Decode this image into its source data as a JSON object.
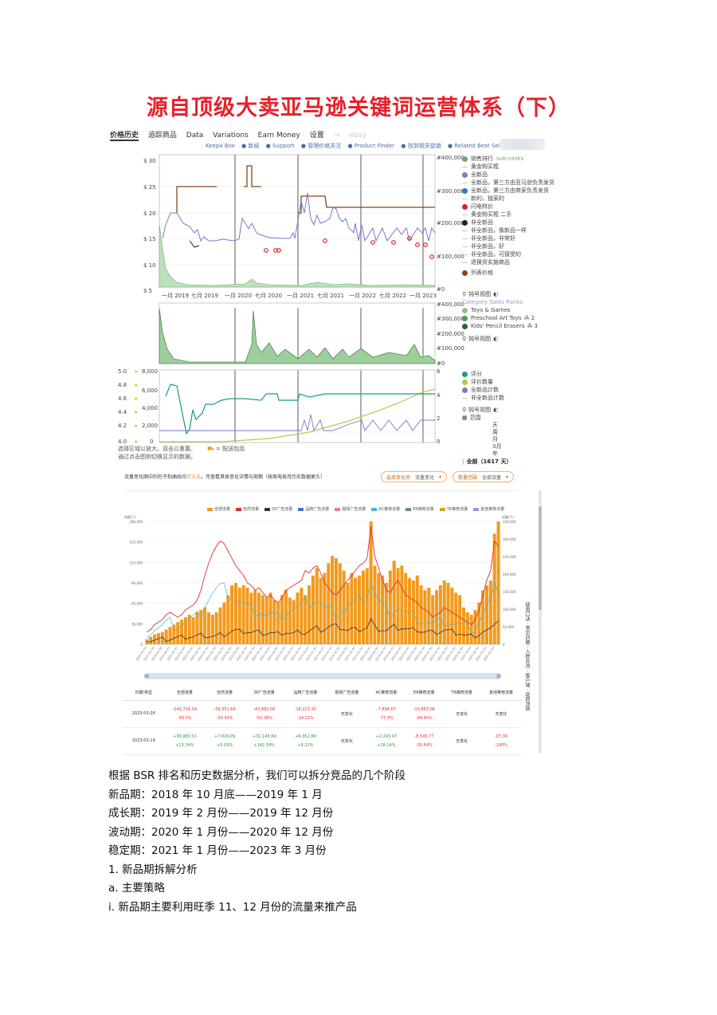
{
  "title": "源自顶级大卖亚马逊关键词运营体系（下）",
  "keepa": {
    "tabs": [
      "价格历史",
      "追踪商品",
      "Data",
      "Variations",
      "Earn Money",
      "设置",
      "→",
      "ebay"
    ],
    "links": [
      "Keepa Box",
      "● 新闻",
      "● Support",
      "● 管理价格关注",
      "● Product Finder",
      "● 找到相关促销",
      "● Related Best Sellers"
    ],
    "price_axis": [
      "$ 30",
      "$ 25",
      "$ 20",
      "$ 15",
      "$ 10",
      "$ 5"
    ],
    "rank_axis": [
      "#400,000",
      "#300,000",
      "#200,000",
      "#100,000",
      "#0"
    ],
    "rank_axis_small": [
      "#400,000",
      "#300,000",
      "#200,000",
      "#100,000",
      "#0"
    ],
    "date_axis": [
      "一月 2019",
      "七月 2019",
      "一月 2020",
      "七月 2020",
      "一月 2021",
      "七月 2021",
      "一月 2022",
      "七月 2022",
      "一月 2023"
    ],
    "rating_axis": [
      "5.0",
      "4.8",
      "4.6",
      "4.4",
      "4.2",
      "4.0"
    ],
    "count_axis": [
      "8,000",
      "6,000",
      "4,000",
      "2,000",
      "0"
    ],
    "offer_axis": [
      "6",
      "4",
      "2",
      "0"
    ],
    "legend_main": [
      {
        "text": "销售排行",
        "extra": "sub-ranks",
        "color": "#6aa86a",
        "kind": "dot"
      },
      {
        "text": "黄金购买框",
        "color": "#888",
        "kind": "dash"
      },
      {
        "text": "全新品",
        "color": "#7b77cc",
        "kind": "dot"
      },
      {
        "text": "全新品，第三方由亚马逊负责发货",
        "color": "#888",
        "kind": "dash"
      },
      {
        "text": "全新品，第三方由商家负责发货",
        "color": "#3a6fd8",
        "kind": "dot"
      },
      {
        "text": "新的，独家的",
        "color": "#888",
        "kind": "dash"
      },
      {
        "text": "闪电特价",
        "color": "#e02020",
        "kind": "dot"
      },
      {
        "text": "黄金购买框 二手",
        "color": "#888",
        "kind": "dash"
      },
      {
        "text": "非全新品",
        "color": "#222",
        "kind": "dot"
      },
      {
        "text": "非全新品，像新品一样",
        "color": "#888",
        "kind": "dash"
      },
      {
        "text": "非全新品，非常好",
        "color": "#888",
        "kind": "dash"
      },
      {
        "text": "非全新品，好",
        "color": "#888",
        "kind": "dash"
      },
      {
        "text": "非全新品，可接受的",
        "color": "#888",
        "kind": "dash"
      },
      {
        "text": "退换货实施商品",
        "color": "#888",
        "kind": "dash"
      },
      {
        "text": "列表价格",
        "color": "#8b4513",
        "kind": "dot"
      }
    ],
    "legend_rank": {
      "toggle": "钝号视图",
      "title": "Category Sales Ranks",
      "items": [
        {
          "text": "Toys & Games",
          "color": "#8fbf8f"
        },
        {
          "text": "Preschool Art Toys",
          "suffix": "2",
          "color": "#4f9a5a"
        },
        {
          "text": "Kids' Pencil Erasers",
          "suffix": "3",
          "color": "#2f5f35"
        }
      ],
      "toggle2": "钝号视图"
    },
    "legend_rating": [
      {
        "text": "评分",
        "color": "#1a9a8a"
      },
      {
        "text": "评价数量",
        "color": "#b7c94a"
      },
      {
        "text": "全新品计数",
        "color": "#7b77cc"
      },
      {
        "text": "非全新品计数",
        "color": "#888",
        "kind": "dash"
      }
    ],
    "rating_toggle": "钝号视图",
    "range_label": "范围",
    "range_options": [
      "天",
      "周",
      "月",
      "3月",
      "年"
    ],
    "range_all": "全部（1617 天）",
    "note_line1": "选择区域以放大。双击以重置。",
    "note_legend": "= 配送包括",
    "note_line2": "通过点击图例切换显示的数据。"
  },
  "traffic": {
    "header_prefix": "流量变化图中的柱子和曲线均",
    "header_accent": "可点击",
    "header_suffix": "。可查看具体变化详情与周期（按周电按月历史数据更久）",
    "select1": {
      "label": "选择变化项",
      "value": "流量变化"
    },
    "select2": {
      "label": "数量范围",
      "value": "全部流量"
    },
    "legend": [
      {
        "text": "全部流量",
        "color": "#f39a1c"
      },
      {
        "text": "自然流量",
        "color": "#e0302a"
      },
      {
        "text": "SP广告流量",
        "color": "#333333"
      },
      {
        "text": "品牌广告流量",
        "color": "#3a7bd5"
      },
      {
        "text": "视频广告流量",
        "color": "#e37aa8"
      },
      {
        "text": "AC推荐流量",
        "color": "#4bb6c7"
      },
      {
        "text": "ER推荐流量",
        "color": "#6d8f6d"
      },
      {
        "text": "TR推荐流量",
        "color": "#d9a227"
      },
      {
        "text": "其他推荐流量",
        "color": "#b38bd8"
      }
    ],
    "left_axis_title": "流量(个)",
    "right_axis_title": "流量(个)",
    "left_ticks": [
      "180,000",
      "150,000",
      "120,000",
      "90,000",
      "60,000",
      "30,000",
      "0"
    ],
    "right_ticks": [
      "350,000",
      "300,000",
      "250,000",
      "200,000",
      "150,000",
      "100,000",
      "50,000",
      "0"
    ],
    "sidebar_text": "使用口诀 · 常见问题 · 入群交流 · 客户端 · 返回顶部",
    "table": {
      "headers": [
        "日期\\类型",
        "全部流量",
        "自然流量",
        "SP广告流量",
        "品牌广告流量",
        "视频广告流量",
        "AC推荐流量",
        "ER推荐流量",
        "TR推荐流量",
        "其他推荐流量"
      ],
      "rows": [
        {
          "date": "2023-03-26",
          "cells": [
            {
              "v": "-140,716.04",
              "p": "-43.5%",
              "sign": "neg"
            },
            {
              "v": "-56,351.64",
              "p": "-33.43%",
              "sign": "neg"
            },
            {
              "v": "-43,882.06",
              "p": "-52.38%",
              "sign": "neg"
            },
            {
              "v": "-16,223.20",
              "p": "-24.21%",
              "sign": "neg"
            },
            {
              "v": "无变化",
              "p": "",
              "sign": "none"
            },
            {
              "v": "-7,894.67",
              "p": "-77.3%",
              "sign": "neg"
            },
            {
              "v": "-15,863.06",
              "p": "-89.45%",
              "sign": "neg"
            },
            {
              "v": "无变化",
              "p": "",
              "sign": "none"
            },
            {
              "v": "无变化",
              "p": "",
              "sign": "none"
            }
          ]
        },
        {
          "date": "2023-03-19",
          "cells": [
            {
              "v": "+38,965.51",
              "p": "+13.74%",
              "sign": "pos"
            },
            {
              "v": "+7,824.09",
              "p": "+5.03%",
              "sign": "pos"
            },
            {
              "v": "+31,148.84",
              "p": "+142.39%",
              "sign": "pos"
            },
            {
              "v": "+6,352.84",
              "p": "+9.22%",
              "sign": "pos"
            },
            {
              "v": "无变化",
              "p": "",
              "sign": "none"
            },
            {
              "v": "+2,243.07",
              "p": "+28.14%",
              "sign": "pos"
            },
            {
              "v": "-8,545.77",
              "p": "-30.64%",
              "sign": "neg"
            },
            {
              "v": "无变化",
              "p": "",
              "sign": "none"
            },
            {
              "v": "-07.36",
              "p": "-100%",
              "sign": "neg"
            }
          ]
        }
      ]
    }
  },
  "body": [
    "根据 BSR 排名和历史数据分析，我们可以拆分竞品的几个阶段",
    "新品期：2018 年 10 月底——2019 年 1 月",
    "成长期：2019 年 2 月份——2019 年 12 月份",
    "波动期：2020 年 1 月份——2020 年 12 月份",
    "稳定期：2021 年 1 月份——2023 年 3 月份",
    "1.   新品期拆解分析",
    "a.   主要策略",
    "i.   新品期主要利用旺季 11、12 月份的流量来推产品"
  ],
  "colors": {
    "title": "#e8202a",
    "bar": "#f39a1c",
    "organic": "#e0302a",
    "new_price": "#7b77cc",
    "list_price": "#8b4513",
    "rank": "#6aa86a",
    "rating": "#1a9a8a",
    "reviews": "#b7c94a"
  }
}
